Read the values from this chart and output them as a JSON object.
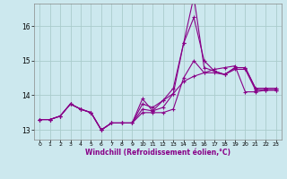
{
  "xlabel": "Windchill (Refroidissement éolien,°C)",
  "ylabel": "",
  "bg_color": "#cce8ee",
  "grid_color": "#aacccc",
  "line_color": "#880088",
  "xlim": [
    -0.5,
    23.5
  ],
  "ylim": [
    12.72,
    16.65
  ],
  "yticks": [
    13,
    14,
    15,
    16
  ],
  "xticks": [
    0,
    1,
    2,
    3,
    4,
    5,
    6,
    7,
    8,
    9,
    10,
    11,
    12,
    13,
    14,
    15,
    16,
    17,
    18,
    19,
    20,
    21,
    22,
    23
  ],
  "series": [
    [
      13.3,
      13.3,
      13.4,
      13.75,
      13.6,
      13.5,
      13.0,
      13.2,
      13.2,
      13.2,
      13.75,
      13.65,
      13.85,
      14.05,
      15.5,
      16.25,
      15.0,
      14.7,
      14.6,
      14.8,
      14.8,
      14.2,
      14.2,
      14.2
    ],
    [
      13.3,
      13.3,
      13.4,
      13.75,
      13.6,
      13.5,
      13.0,
      13.2,
      13.2,
      13.2,
      13.6,
      13.55,
      13.65,
      14.05,
      14.4,
      14.55,
      14.65,
      14.75,
      14.8,
      14.85,
      14.1,
      14.1,
      14.15,
      14.15
    ],
    [
      13.3,
      13.3,
      13.4,
      13.75,
      13.6,
      13.5,
      13.0,
      13.2,
      13.2,
      13.2,
      13.9,
      13.55,
      13.85,
      14.2,
      15.5,
      16.85,
      14.8,
      14.7,
      14.6,
      14.8,
      14.8,
      14.2,
      14.2,
      14.2
    ],
    [
      13.3,
      13.3,
      13.4,
      13.75,
      13.6,
      13.5,
      13.0,
      13.2,
      13.2,
      13.2,
      13.5,
      13.5,
      13.5,
      13.6,
      14.5,
      15.0,
      14.65,
      14.65,
      14.6,
      14.75,
      14.75,
      14.15,
      14.15,
      14.15
    ]
  ],
  "marker": "+",
  "markersize": 3.5,
  "linewidth": 0.8
}
